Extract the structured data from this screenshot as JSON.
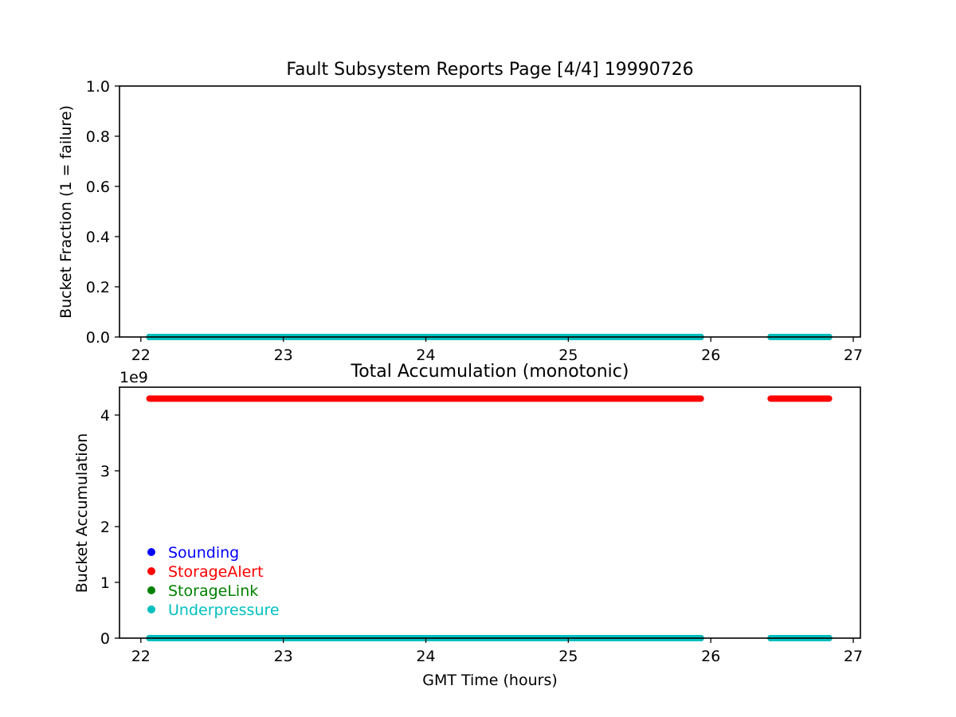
{
  "colors": {
    "Sounding": "#0000ff",
    "StorageAlert": "#ff0000",
    "StorageLink": "#008000",
    "Underpressure": "#00bfbf"
  },
  "chart_data": [
    {
      "type": "scatter",
      "title": "Fault Subsystem Reports Page [4/4] 19990726",
      "xlabel": "",
      "ylabel": "Bucket Fraction (1 = failure)",
      "xlim": [
        21.85,
        27.05
      ],
      "ylim": [
        0.0,
        1.0
      ],
      "xticks": [
        22,
        23,
        24,
        25,
        26,
        27
      ],
      "yticks": [
        0.0,
        0.2,
        0.4,
        0.6,
        0.8,
        1.0
      ],
      "xtick_labels": [
        "22",
        "23",
        "24",
        "25",
        "26",
        "27"
      ],
      "ytick_labels": [
        "0.0",
        "0.2",
        "0.4",
        "0.6",
        "0.8",
        "1.0"
      ],
      "grid": false,
      "series": [
        {
          "name": "Sounding",
          "color": "#0000ff",
          "value": 0.0,
          "segments": [
            [
              22.06,
              25.93
            ],
            [
              26.42,
              26.83
            ]
          ]
        },
        {
          "name": "StorageAlert",
          "color": "#ff0000",
          "value": 0.0,
          "segments": [
            [
              22.06,
              25.93
            ],
            [
              26.42,
              26.83
            ]
          ]
        },
        {
          "name": "StorageLink",
          "color": "#008000",
          "value": 0.0,
          "segments": [
            [
              22.06,
              25.93
            ],
            [
              26.42,
              26.83
            ]
          ]
        },
        {
          "name": "Underpressure",
          "color": "#00bfbf",
          "value": 0.0,
          "segments": [
            [
              22.06,
              25.93
            ],
            [
              26.42,
              26.83
            ]
          ]
        }
      ]
    },
    {
      "type": "scatter",
      "title": "Total Accumulation (monotonic)",
      "xlabel": "GMT Time (hours)",
      "ylabel": "Bucket Accumulation",
      "offset_label": "1e9",
      "xlim": [
        21.85,
        27.05
      ],
      "ylim": [
        0.0,
        4.5
      ],
      "xticks": [
        22,
        23,
        24,
        25,
        26,
        27
      ],
      "yticks": [
        0,
        1,
        2,
        3,
        4
      ],
      "xtick_labels": [
        "22",
        "23",
        "24",
        "25",
        "26",
        "27"
      ],
      "ytick_labels": [
        "0",
        "1",
        "2",
        "3",
        "4"
      ],
      "grid": false,
      "legend": {
        "placement": "lower-left",
        "entries": [
          "Sounding",
          "StorageAlert",
          "StorageLink",
          "Underpressure"
        ]
      },
      "series": [
        {
          "name": "Sounding",
          "color": "#0000ff",
          "value": 0.0,
          "segments": [
            [
              22.06,
              25.93
            ],
            [
              26.42,
              26.83
            ]
          ]
        },
        {
          "name": "StorageAlert",
          "color": "#ff0000",
          "value": 4.295,
          "segments": [
            [
              22.06,
              25.93
            ],
            [
              26.42,
              26.83
            ]
          ]
        },
        {
          "name": "StorageLink",
          "color": "#008000",
          "value": 0.0,
          "segments": [
            [
              22.06,
              25.93
            ],
            [
              26.42,
              26.83
            ]
          ]
        },
        {
          "name": "Underpressure",
          "color": "#00bfbf",
          "value": 0.0,
          "segments": [
            [
              22.06,
              25.93
            ],
            [
              26.42,
              26.83
            ]
          ]
        }
      ]
    }
  ]
}
